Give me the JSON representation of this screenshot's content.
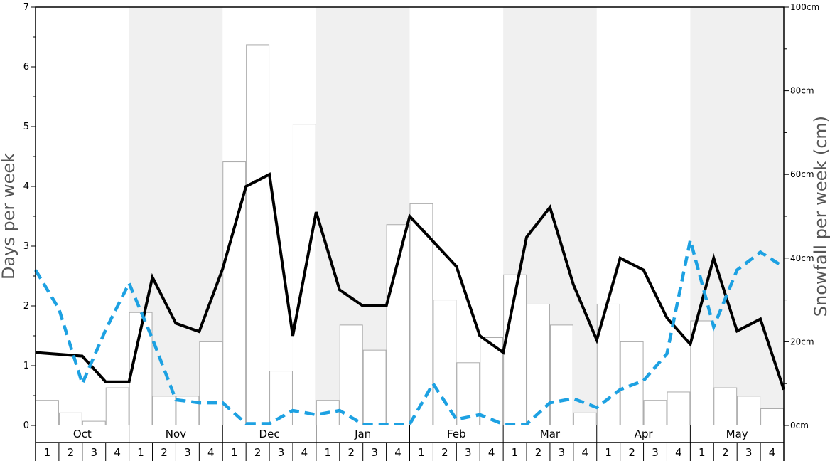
{
  "chart_data": {
    "type": "bar+line",
    "y_left": {
      "label": "Days per week",
      "ylim": [
        0,
        7
      ],
      "ticks": [
        "0",
        "1",
        "2",
        "3",
        "4",
        "5",
        "6",
        "7"
      ]
    },
    "y_right": {
      "label": "Snowfall per week (cm)",
      "ylim": [
        0,
        100
      ],
      "ticks": [
        "0cm",
        "20cm",
        "40cm",
        "60cm",
        "80cm",
        "100cm"
      ]
    },
    "months": [
      "Oct",
      "Nov",
      "Dec",
      "Jan",
      "Feb",
      "Mar",
      "Apr",
      "May"
    ],
    "weeks": [
      "1",
      "2",
      "3",
      "4"
    ],
    "series": [
      {
        "kind": "bar",
        "axis": "right",
        "values": [
          6,
          3,
          1,
          9,
          27,
          7,
          7,
          20,
          63,
          91,
          13,
          72,
          6,
          24,
          18,
          48,
          53,
          30,
          15,
          21,
          36,
          29,
          24,
          3,
          29,
          20,
          6,
          8,
          25,
          9,
          7,
          4
        ]
      },
      {
        "kind": "line",
        "axis": "left",
        "style": "solid",
        "color": "#000000",
        "values": [
          1.22,
          1.19,
          1.16,
          0.73,
          0.73,
          2.48,
          1.71,
          1.57,
          2.62,
          4.0,
          4.2,
          1.5,
          3.57,
          2.27,
          2.0,
          2.0,
          3.5,
          3.08,
          2.66,
          1.5,
          1.22,
          3.15,
          3.65,
          2.36,
          1.43,
          2.8,
          2.6,
          1.8,
          1.36,
          2.8,
          1.58,
          1.78,
          0.6
        ]
      },
      {
        "kind": "line",
        "axis": "left",
        "style": "dashed",
        "color": "#1da1e2",
        "values": [
          2.6,
          1.95,
          0.7,
          1.6,
          2.38,
          1.45,
          0.43,
          0.38,
          0.38,
          0.03,
          0.03,
          0.25,
          0.18,
          0.25,
          0.02,
          0.02,
          0.02,
          0.7,
          0.1,
          0.18,
          0.02,
          0.02,
          0.38,
          0.45,
          0.3,
          0.6,
          0.75,
          1.2,
          3.1,
          1.65,
          2.6,
          2.9,
          2.65
        ]
      }
    ],
    "shaded_months": [
      "Nov",
      "Jan",
      "Mar",
      "May"
    ],
    "shade_color": "#f0f0f0"
  }
}
